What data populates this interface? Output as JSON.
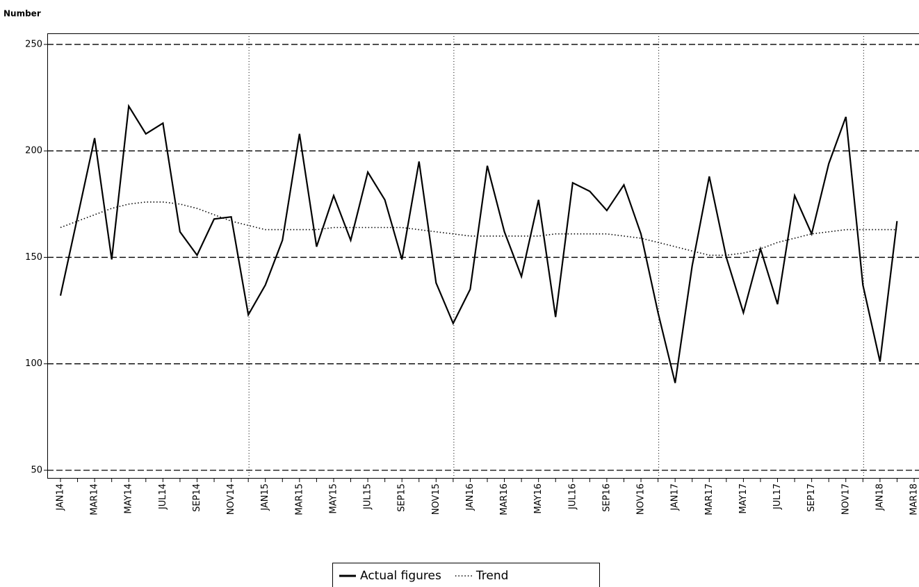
{
  "chart_data": {
    "type": "line",
    "y_label": "Number",
    "categories": [
      "JAN14",
      null,
      "MAR14",
      null,
      "MAY14",
      null,
      "JUL14",
      null,
      "SEP14",
      null,
      "NOV14",
      null,
      "JAN15",
      null,
      "MAR15",
      null,
      "MAY15",
      null,
      "JUL15",
      null,
      "SEP15",
      null,
      "NOV15",
      null,
      "JAN16",
      null,
      "MAR16",
      null,
      "MAY16",
      null,
      "JUL16",
      null,
      "SEP16",
      null,
      "NOV16",
      null,
      "JAN17",
      null,
      "MAR17",
      null,
      "MAY17",
      null,
      "JUL17",
      null,
      "SEP17",
      null,
      "NOV17",
      null,
      "JAN18",
      null,
      "MAR18"
    ],
    "series": [
      {
        "name": "Actual figures",
        "color": "#000000",
        "style": "solid",
        "values": [
          132,
          169,
          206,
          149,
          221,
          208,
          213,
          162,
          151,
          168,
          169,
          123,
          137,
          158,
          208,
          155,
          179,
          158,
          190,
          177,
          149,
          195,
          138,
          119,
          135,
          193,
          162,
          141,
          177,
          122,
          185,
          181,
          172,
          184,
          161,
          124,
          91,
          146,
          188,
          150,
          124,
          154,
          128,
          179,
          161,
          194,
          216,
          137,
          101,
          167,
          null
        ]
      },
      {
        "name": "Trend",
        "color": "#000000",
        "style": "dotted",
        "values": [
          164,
          167,
          170,
          173,
          175,
          176,
          176,
          175,
          173,
          170,
          167,
          165,
          163,
          163,
          163,
          163,
          164,
          164,
          164,
          164,
          164,
          163,
          162,
          161,
          160,
          160,
          160,
          160,
          160,
          161,
          161,
          161,
          161,
          160,
          159,
          157,
          155,
          153,
          151,
          151,
          152,
          154,
          157,
          159,
          161,
          162,
          163,
          163,
          163,
          163,
          null
        ]
      }
    ],
    "ylim": [
      46.4,
      255.2
    ],
    "yticks": [
      50,
      100,
      150,
      200,
      250
    ],
    "grid": true
  }
}
